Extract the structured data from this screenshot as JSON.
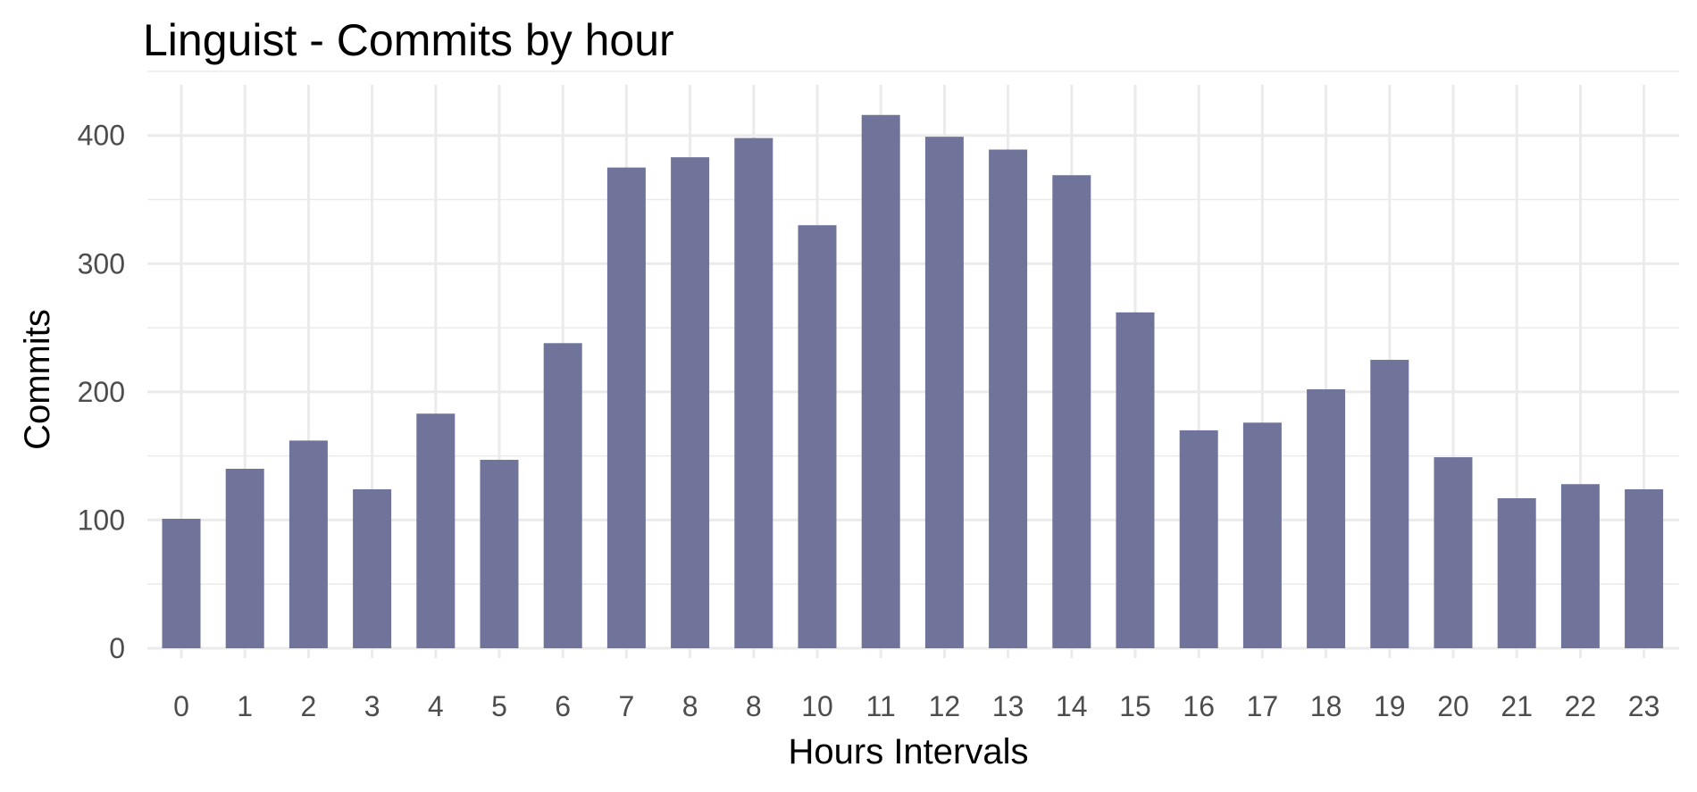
{
  "chart_data": {
    "type": "bar",
    "title": "Linguist - Commits by hour",
    "xlabel": "Hours Intervals",
    "ylabel": "Commits",
    "categories": [
      "0",
      "1",
      "2",
      "3",
      "4",
      "5",
      "6",
      "7",
      "8",
      "8",
      "10",
      "11",
      "12",
      "13",
      "14",
      "15",
      "16",
      "17",
      "18",
      "19",
      "20",
      "21",
      "22",
      "23"
    ],
    "values": [
      101,
      140,
      162,
      124,
      183,
      147,
      238,
      375,
      383,
      398,
      330,
      416,
      399,
      389,
      369,
      262,
      170,
      176,
      202,
      225,
      149,
      117,
      128,
      124
    ],
    "y_ticks": [
      0,
      100,
      200,
      300,
      400
    ],
    "y_tick_labels": [
      "0",
      "100",
      "200",
      "300",
      "400"
    ],
    "ylim": [
      0,
      440
    ],
    "grid": true,
    "bar_color": "#70749a",
    "legend": "none"
  }
}
